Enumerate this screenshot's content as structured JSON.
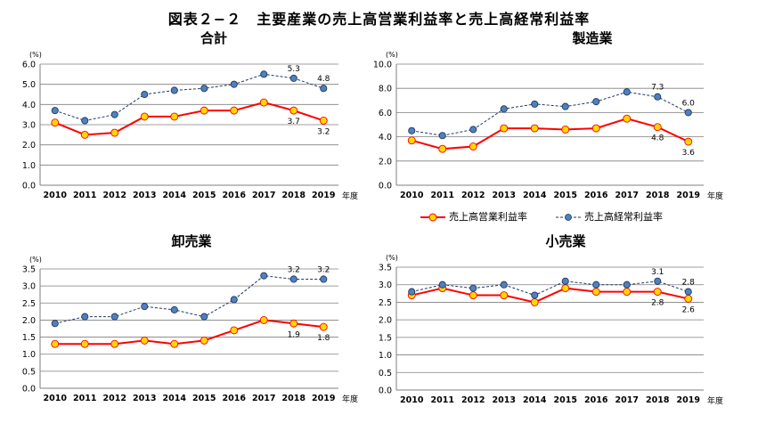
{
  "main_title": "図表２−２　主要産業の売上高営業利益率と売上高経常利益率",
  "legend": {
    "series1": "売上高営業利益率",
    "series2": "売上高経常利益率"
  },
  "colors": {
    "series1_line": "#ff0000",
    "series1_marker": "#ffd700",
    "series2_line": "#1f3864",
    "series2_marker": "#4f81bd",
    "grid": "#7f7f7f"
  },
  "chart_data": [
    {
      "type": "line",
      "title": "合計",
      "ylabel": "(%)",
      "xlabel": "年度",
      "x": [
        "2010",
        "2011",
        "2012",
        "2013",
        "2014",
        "2015",
        "2016",
        "2017",
        "2018",
        "2019"
      ],
      "ylim": [
        0,
        6
      ],
      "ytick_step": 1,
      "ytick_decimals": 1,
      "yticks": [
        "0.0",
        "1.0",
        "2.0",
        "3.0",
        "4.0",
        "5.0",
        "6.0"
      ],
      "series": [
        {
          "name": "売上高営業利益率",
          "values": [
            3.1,
            2.5,
            2.6,
            3.4,
            3.4,
            3.7,
            3.7,
            4.1,
            3.7,
            3.2
          ]
        },
        {
          "name": "売上高経常利益率",
          "values": [
            3.7,
            3.2,
            3.5,
            4.5,
            4.7,
            4.8,
            5.0,
            5.5,
            5.3,
            4.8
          ]
        }
      ],
      "annotations": [
        {
          "series": 0,
          "index": 8,
          "text": "3.7",
          "pos": "below"
        },
        {
          "series": 0,
          "index": 9,
          "text": "3.2",
          "pos": "below"
        },
        {
          "series": 1,
          "index": 8,
          "text": "5.3",
          "pos": "above"
        },
        {
          "series": 1,
          "index": 9,
          "text": "4.8",
          "pos": "above"
        }
      ]
    },
    {
      "type": "line",
      "title": "製造業",
      "ylabel": "(%)",
      "xlabel": "年度",
      "x": [
        "2010",
        "2011",
        "2012",
        "2013",
        "2014",
        "2015",
        "2016",
        "2017",
        "2018",
        "2019"
      ],
      "ylim": [
        0,
        10
      ],
      "ytick_step": 2,
      "ytick_decimals": 1,
      "yticks": [
        "0.0",
        "2.0",
        "4.0",
        "6.0",
        "8.0",
        "10.0"
      ],
      "series": [
        {
          "name": "売上高営業利益率",
          "values": [
            3.7,
            3.0,
            3.2,
            4.7,
            4.7,
            4.6,
            4.7,
            5.5,
            4.8,
            3.6
          ]
        },
        {
          "name": "売上高経常利益率",
          "values": [
            4.5,
            4.1,
            4.6,
            6.3,
            6.7,
            6.5,
            6.9,
            7.7,
            7.3,
            6.0
          ]
        }
      ],
      "annotations": [
        {
          "series": 0,
          "index": 8,
          "text": "4.8",
          "pos": "below"
        },
        {
          "series": 0,
          "index": 9,
          "text": "3.6",
          "pos": "below"
        },
        {
          "series": 1,
          "index": 8,
          "text": "7.3",
          "pos": "above"
        },
        {
          "series": 1,
          "index": 9,
          "text": "6.0",
          "pos": "above"
        }
      ]
    },
    {
      "type": "line",
      "title": "卸売業",
      "ylabel": "(%)",
      "xlabel": "年度",
      "x": [
        "2010",
        "2011",
        "2012",
        "2013",
        "2014",
        "2015",
        "2016",
        "2017",
        "2018",
        "2019"
      ],
      "ylim": [
        0,
        3.5
      ],
      "ytick_step": 0.5,
      "ytick_decimals": 1,
      "yticks": [
        "0.0",
        "0.5",
        "1.0",
        "1.5",
        "2.0",
        "2.5",
        "3.0",
        "3.5"
      ],
      "series": [
        {
          "name": "売上高営業利益率",
          "values": [
            1.3,
            1.3,
            1.3,
            1.4,
            1.3,
            1.4,
            1.7,
            2.0,
            1.9,
            1.8
          ]
        },
        {
          "name": "売上高経常利益率",
          "values": [
            1.9,
            2.1,
            2.1,
            2.4,
            2.3,
            2.1,
            2.6,
            3.3,
            3.2,
            3.2
          ]
        }
      ],
      "annotations": [
        {
          "series": 0,
          "index": 8,
          "text": "1.9",
          "pos": "below"
        },
        {
          "series": 0,
          "index": 9,
          "text": "1.8",
          "pos": "below"
        },
        {
          "series": 1,
          "index": 8,
          "text": "3.2",
          "pos": "above"
        },
        {
          "series": 1,
          "index": 9,
          "text": "3.2",
          "pos": "above"
        }
      ]
    },
    {
      "type": "line",
      "title": "小売業",
      "ylabel": "(%)",
      "xlabel": "年度",
      "x": [
        "2010",
        "2011",
        "2012",
        "2013",
        "2014",
        "2015",
        "2016",
        "2017",
        "2018",
        "2019"
      ],
      "ylim": [
        0,
        3.5
      ],
      "ytick_step": 0.5,
      "ytick_decimals": 1,
      "yticks": [
        "0.0",
        "0.5",
        "1.0",
        "1.5",
        "2.0",
        "2.5",
        "3.0",
        "3.5"
      ],
      "series": [
        {
          "name": "売上高営業利益率",
          "values": [
            2.7,
            2.9,
            2.7,
            2.7,
            2.5,
            2.9,
            2.8,
            2.8,
            2.8,
            2.6
          ]
        },
        {
          "name": "売上高経常利益率",
          "values": [
            2.8,
            3.0,
            2.9,
            3.0,
            2.7,
            3.1,
            3.0,
            3.0,
            3.1,
            2.8
          ]
        }
      ],
      "annotations": [
        {
          "series": 0,
          "index": 8,
          "text": "2.8",
          "pos": "below"
        },
        {
          "series": 0,
          "index": 9,
          "text": "2.6",
          "pos": "below"
        },
        {
          "series": 1,
          "index": 8,
          "text": "3.1",
          "pos": "above"
        },
        {
          "series": 1,
          "index": 9,
          "text": "2.8",
          "pos": "above"
        }
      ]
    }
  ]
}
